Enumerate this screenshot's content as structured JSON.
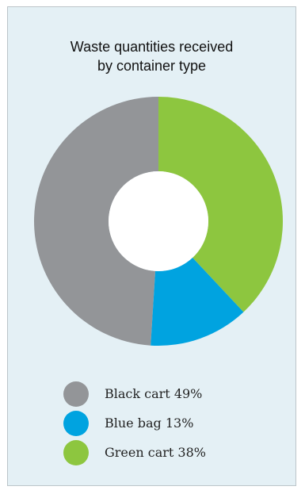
{
  "chart_data": {
    "type": "pie",
    "donut": true,
    "title_lines": [
      "Waste quantities received",
      "by container type"
    ],
    "categories": [
      "Black cart",
      "Blue bag",
      "Green cart"
    ],
    "values": [
      49,
      13,
      38
    ],
    "unit": "%",
    "colors": [
      "#939598",
      "#00a3e0",
      "#8dc63f"
    ],
    "legend_labels": [
      "Black cart 49%",
      "Blue bag 13%",
      "Green cart 38%"
    ],
    "legend_placement": "bottom"
  }
}
